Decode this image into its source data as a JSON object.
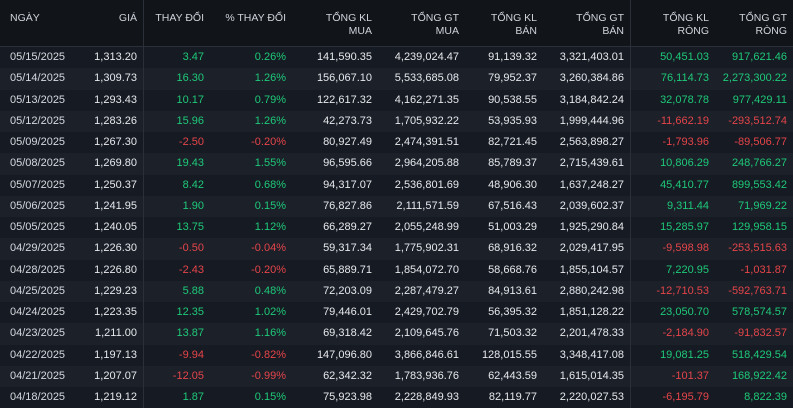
{
  "headers": [
    [
      "NGÀY",
      ""
    ],
    [
      "GIÁ",
      ""
    ],
    [
      "THAY ĐỔI",
      ""
    ],
    [
      "% THAY ĐỔI",
      ""
    ],
    [
      "TỔNG KL",
      "MUA"
    ],
    [
      "TỔNG GT",
      "MUA"
    ],
    [
      "TỔNG KL",
      "BÁN"
    ],
    [
      "TỔNG GT",
      "BÁN"
    ],
    [
      "TỔNG KL",
      "RÒNG"
    ],
    [
      "TỔNG GT",
      "RÒNG"
    ]
  ],
  "colors": {
    "up": "#1ec979",
    "down": "#e5454a"
  },
  "rows": [
    {
      "date": "05/15/2025",
      "price": "1,313.20",
      "change": "3.47",
      "pct": "0.26%",
      "kl_mua": "141,590.35",
      "gt_mua": "4,239,024.47",
      "kl_ban": "91,139.32",
      "gt_ban": "3,321,403.01",
      "kl_rong": "50,451.03",
      "gt_rong": "917,621.46",
      "dir": "up",
      "net": "up"
    },
    {
      "date": "05/14/2025",
      "price": "1,309.73",
      "change": "16.30",
      "pct": "1.26%",
      "kl_mua": "156,067.10",
      "gt_mua": "5,533,685.08",
      "kl_ban": "79,952.37",
      "gt_ban": "3,260,384.86",
      "kl_rong": "76,114.73",
      "gt_rong": "2,273,300.22",
      "dir": "up",
      "net": "up"
    },
    {
      "date": "05/13/2025",
      "price": "1,293.43",
      "change": "10.17",
      "pct": "0.79%",
      "kl_mua": "122,617.32",
      "gt_mua": "4,162,271.35",
      "kl_ban": "90,538.55",
      "gt_ban": "3,184,842.24",
      "kl_rong": "32,078.78",
      "gt_rong": "977,429.11",
      "dir": "up",
      "net": "up"
    },
    {
      "date": "05/12/2025",
      "price": "1,283.26",
      "change": "15.96",
      "pct": "1.26%",
      "kl_mua": "42,273.73",
      "gt_mua": "1,705,932.22",
      "kl_ban": "53,935.93",
      "gt_ban": "1,999,444.96",
      "kl_rong": "-11,662.19",
      "gt_rong": "-293,512.74",
      "dir": "up",
      "net": "down"
    },
    {
      "date": "05/09/2025",
      "price": "1,267.30",
      "change": "-2.50",
      "pct": "-0.20%",
      "kl_mua": "80,927.49",
      "gt_mua": "2,474,391.51",
      "kl_ban": "82,721.45",
      "gt_ban": "2,563,898.27",
      "kl_rong": "-1,793.96",
      "gt_rong": "-89,506.77",
      "dir": "down",
      "net": "down"
    },
    {
      "date": "05/08/2025",
      "price": "1,269.80",
      "change": "19.43",
      "pct": "1.55%",
      "kl_mua": "96,595.66",
      "gt_mua": "2,964,205.88",
      "kl_ban": "85,789.37",
      "gt_ban": "2,715,439.61",
      "kl_rong": "10,806.29",
      "gt_rong": "248,766.27",
      "dir": "up",
      "net": "up"
    },
    {
      "date": "05/07/2025",
      "price": "1,250.37",
      "change": "8.42",
      "pct": "0.68%",
      "kl_mua": "94,317.07",
      "gt_mua": "2,536,801.69",
      "kl_ban": "48,906.30",
      "gt_ban": "1,637,248.27",
      "kl_rong": "45,410.77",
      "gt_rong": "899,553.42",
      "dir": "up",
      "net": "up"
    },
    {
      "date": "05/06/2025",
      "price": "1,241.95",
      "change": "1.90",
      "pct": "0.15%",
      "kl_mua": "76,827.86",
      "gt_mua": "2,111,571.59",
      "kl_ban": "67,516.43",
      "gt_ban": "2,039,602.37",
      "kl_rong": "9,311.44",
      "gt_rong": "71,969.22",
      "dir": "up",
      "net": "up"
    },
    {
      "date": "05/05/2025",
      "price": "1,240.05",
      "change": "13.75",
      "pct": "1.12%",
      "kl_mua": "66,289.27",
      "gt_mua": "2,055,248.99",
      "kl_ban": "51,003.29",
      "gt_ban": "1,925,290.84",
      "kl_rong": "15,285.97",
      "gt_rong": "129,958.15",
      "dir": "up",
      "net": "up"
    },
    {
      "date": "04/29/2025",
      "price": "1,226.30",
      "change": "-0.50",
      "pct": "-0.04%",
      "kl_mua": "59,317.34",
      "gt_mua": "1,775,902.31",
      "kl_ban": "68,916.32",
      "gt_ban": "2,029,417.95",
      "kl_rong": "-9,598.98",
      "gt_rong": "-253,515.63",
      "dir": "down",
      "net": "down"
    },
    {
      "date": "04/28/2025",
      "price": "1,226.80",
      "change": "-2.43",
      "pct": "-0.20%",
      "kl_mua": "65,889.71",
      "gt_mua": "1,854,072.70",
      "kl_ban": "58,668.76",
      "gt_ban": "1,855,104.57",
      "kl_rong": "7,220.95",
      "gt_rong": "-1,031.87",
      "dir": "down",
      "net": "mixed"
    },
    {
      "date": "04/25/2025",
      "price": "1,229.23",
      "change": "5.88",
      "pct": "0.48%",
      "kl_mua": "72,203.09",
      "gt_mua": "2,287,479.27",
      "kl_ban": "84,913.61",
      "gt_ban": "2,880,242.98",
      "kl_rong": "-12,710.53",
      "gt_rong": "-592,763.71",
      "dir": "up",
      "net": "down"
    },
    {
      "date": "04/24/2025",
      "price": "1,223.35",
      "change": "12.35",
      "pct": "1.02%",
      "kl_mua": "79,446.01",
      "gt_mua": "2,429,702.79",
      "kl_ban": "56,395.32",
      "gt_ban": "1,851,128.22",
      "kl_rong": "23,050.70",
      "gt_rong": "578,574.57",
      "dir": "up",
      "net": "up"
    },
    {
      "date": "04/23/2025",
      "price": "1,211.00",
      "change": "13.87",
      "pct": "1.16%",
      "kl_mua": "69,318.42",
      "gt_mua": "2,109,645.76",
      "kl_ban": "71,503.32",
      "gt_ban": "2,201,478.33",
      "kl_rong": "-2,184.90",
      "gt_rong": "-91,832.57",
      "dir": "up",
      "net": "down"
    },
    {
      "date": "04/22/2025",
      "price": "1,197.13",
      "change": "-9.94",
      "pct": "-0.82%",
      "kl_mua": "147,096.80",
      "gt_mua": "3,866,846.61",
      "kl_ban": "128,015.55",
      "gt_ban": "3,348,417.08",
      "kl_rong": "19,081.25",
      "gt_rong": "518,429.54",
      "dir": "down",
      "net": "up"
    },
    {
      "date": "04/21/2025",
      "price": "1,207.07",
      "change": "-12.05",
      "pct": "-0.99%",
      "kl_mua": "62,342.32",
      "gt_mua": "1,783,936.76",
      "kl_ban": "62,443.59",
      "gt_ban": "1,615,014.35",
      "kl_rong": "-101.37",
      "gt_rong": "168,922.42",
      "dir": "down",
      "net": "mixed2"
    },
    {
      "date": "04/18/2025",
      "price": "1,219.12",
      "change": "1.87",
      "pct": "0.15%",
      "kl_mua": "75,923.98",
      "gt_mua": "2,228,849.93",
      "kl_ban": "82,119.77",
      "gt_ban": "2,220,027.53",
      "kl_rong": "-6,195.79",
      "gt_rong": "8,822.39",
      "dir": "up",
      "net": "mixed2"
    }
  ]
}
